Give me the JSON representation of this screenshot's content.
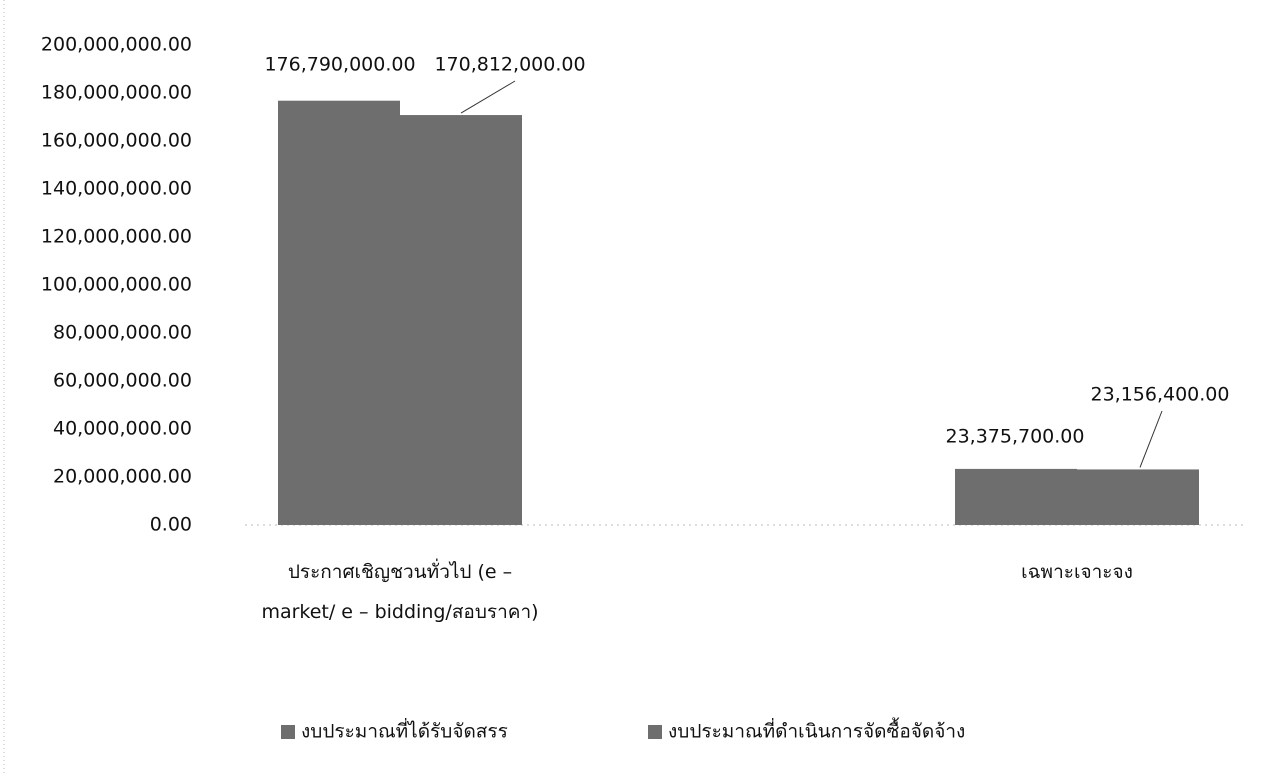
{
  "chart_data": {
    "type": "bar",
    "categories": [
      "ประกาศเชิญชวนทั่วไป (e – market/ e – bidding/สอบราคา)",
      "เฉพาะเจาะจง"
    ],
    "series": [
      {
        "name": "งบประมาณที่ได้รับจัดสรร",
        "color": "#6e6e6e",
        "values": [
          176790000,
          23375700
        ],
        "value_labels": [
          "176,790,000.00",
          "23,375,700.00"
        ]
      },
      {
        "name": "งบประมาณที่ดำเนินการจัดซื้อจัดจ้าง",
        "color": "#6e6e6e",
        "values": [
          170812000,
          23156400
        ],
        "value_labels": [
          "170,812,000.00",
          "23,156,400.00"
        ]
      }
    ],
    "ylim": [
      0,
      200000000
    ],
    "yticks": [
      {
        "value": 0,
        "label": "0.00"
      },
      {
        "value": 20000000,
        "label": "20,000,000.00"
      },
      {
        "value": 40000000,
        "label": "40,000,000.00"
      },
      {
        "value": 60000000,
        "label": "60,000,000.00"
      },
      {
        "value": 80000000,
        "label": "80,000,000.00"
      },
      {
        "value": 100000000,
        "label": "100,000,000.00"
      },
      {
        "value": 120000000,
        "label": "120,000,000.00"
      },
      {
        "value": 140000000,
        "label": "140,000,000.00"
      },
      {
        "value": 160000000,
        "label": "160,000,000.00"
      },
      {
        "value": 180000000,
        "label": "180,000,000.00"
      },
      {
        "value": 200000000,
        "label": "200,000,000.00"
      }
    ],
    "grid": false,
    "legend": "bottom"
  }
}
